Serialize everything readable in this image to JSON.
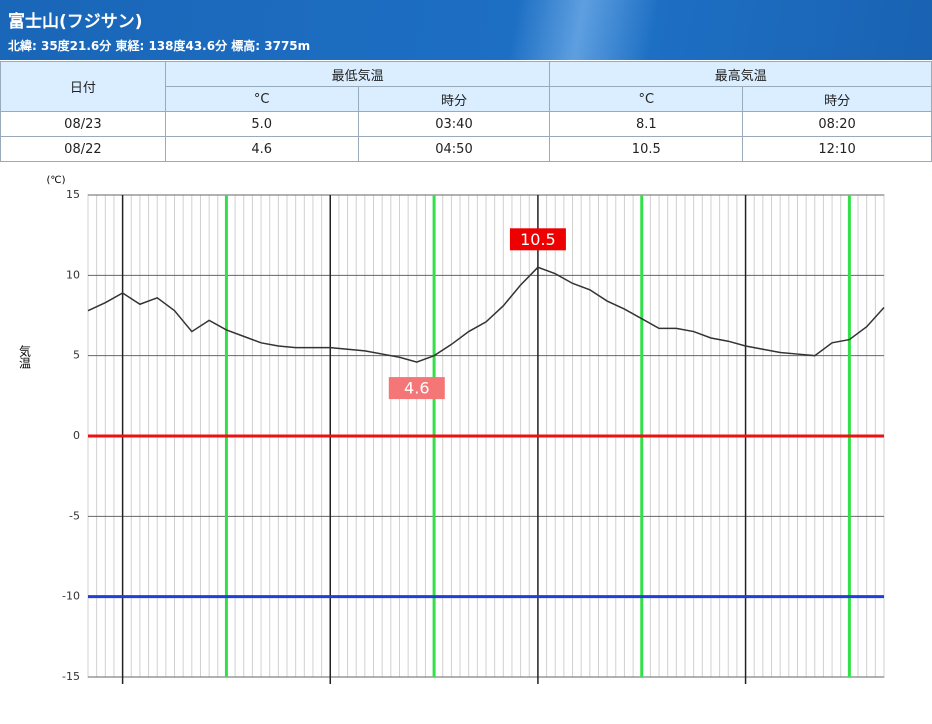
{
  "header": {
    "title": "富士山(フジサン)",
    "subtitle": "北緯: 35度21.6分 東経: 138度43.6分 標高: 3775m"
  },
  "table": {
    "columns": [
      "日付",
      "最低気温",
      "最高気温"
    ],
    "subcolumns": [
      "°C",
      "時分",
      "°C",
      "時分"
    ],
    "rows": [
      [
        "08/23",
        "5.0",
        "03:40",
        "8.1",
        "08:20"
      ],
      [
        "08/22",
        "4.6",
        "04:50",
        "10.5",
        "12:10"
      ]
    ]
  },
  "chart_data": {
    "type": "line",
    "y_unit": "(℃)",
    "y_label": "気温",
    "color": "#333333",
    "values": [
      7.8,
      8.3,
      8.9,
      8.2,
      8.6,
      7.8,
      6.5,
      7.2,
      6.6,
      6.2,
      5.8,
      5.6,
      5.5,
      5.5,
      5.5,
      5.4,
      5.3,
      5.1,
      4.9,
      4.6,
      5.0,
      5.7,
      6.5,
      7.1,
      8.1,
      9.4,
      10.5,
      10.1,
      9.5,
      9.1,
      8.4,
      7.9,
      7.3,
      6.7,
      6.7,
      6.5,
      6.1,
      5.9,
      5.6,
      5.4,
      5.2,
      5.1,
      5.0,
      5.8,
      6.0,
      6.8,
      8.0
    ],
    "ylim": [
      -15,
      15
    ],
    "yticks": [
      -15,
      -10,
      -5,
      0,
      5,
      10,
      15
    ],
    "grid": true,
    "reference_lines": [
      {
        "value": 0,
        "color": "#ee1111"
      },
      {
        "value": -10,
        "color": "#1f3fd8"
      }
    ],
    "annotations": [
      {
        "label": "10.5",
        "at": "max",
        "color": "#ee0000"
      },
      {
        "label": "4.6",
        "at": "min",
        "color": "#f47676"
      }
    ]
  }
}
